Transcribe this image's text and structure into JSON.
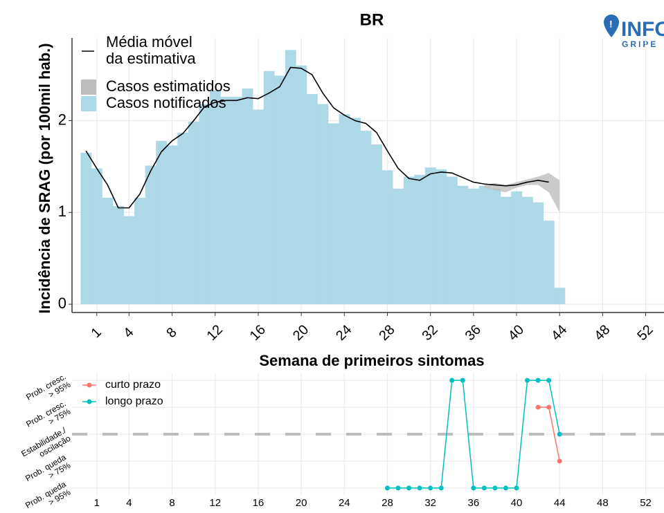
{
  "chart_data": [
    {
      "type": "bar",
      "title": "BR",
      "xlabel": "Semana de primeiros sintomas",
      "ylabel": "Incidência de SRAG (por 100mil hab.)",
      "xlim": [
        -1.3,
        53.7
      ],
      "ylim": [
        -0.09,
        2.9
      ],
      "xticks": [
        1,
        4,
        8,
        12,
        16,
        20,
        24,
        28,
        32,
        36,
        40,
        44,
        48,
        52
      ],
      "yticks": [
        0,
        1,
        2
      ],
      "grid": true,
      "series": [
        {
          "name": "Média móvel\nda estimativa",
          "type": "line",
          "color": "#000000",
          "x": [
            0,
            1,
            2,
            3,
            4,
            5,
            6,
            7,
            8,
            9,
            10,
            11,
            12,
            13,
            14,
            15,
            16,
            17,
            18,
            19,
            20,
            21,
            22,
            23,
            24,
            25,
            26,
            27,
            28,
            29,
            30,
            31,
            32,
            33,
            34,
            35,
            36,
            37,
            38,
            39,
            40,
            41,
            42,
            43
          ],
          "values": [
            1.67,
            1.48,
            1.3,
            1.05,
            1.05,
            1.2,
            1.45,
            1.66,
            1.78,
            1.86,
            2.0,
            2.15,
            2.2,
            2.22,
            2.22,
            2.25,
            2.24,
            2.3,
            2.37,
            2.58,
            2.57,
            2.5,
            2.3,
            2.14,
            2.06,
            2.0,
            1.97,
            1.87,
            1.67,
            1.48,
            1.37,
            1.35,
            1.42,
            1.44,
            1.43,
            1.38,
            1.33,
            1.31,
            1.3,
            1.29,
            1.3,
            1.33,
            1.35,
            1.33
          ]
        },
        {
          "name": "Casos estimatidos",
          "type": "band",
          "color": "#bebebe",
          "x": [
            37,
            38,
            39,
            40,
            41,
            42,
            43,
            44
          ],
          "low": [
            1.27,
            1.24,
            1.22,
            1.27,
            1.3,
            1.3,
            1.22,
            1.0
          ],
          "high": [
            1.3,
            1.32,
            1.3,
            1.33,
            1.36,
            1.39,
            1.43,
            1.35
          ]
        },
        {
          "name": "Casos notificados",
          "type": "bar",
          "color": "#add8e6",
          "x": [
            0,
            1,
            2,
            3,
            4,
            5,
            6,
            7,
            8,
            9,
            10,
            11,
            12,
            13,
            14,
            15,
            16,
            17,
            18,
            19,
            20,
            21,
            22,
            23,
            24,
            25,
            26,
            27,
            28,
            29,
            30,
            31,
            32,
            33,
            34,
            35,
            36,
            37,
            38,
            39,
            40,
            41,
            42,
            43,
            44
          ],
          "values": [
            1.65,
            1.48,
            1.16,
            1.07,
            0.96,
            1.16,
            1.51,
            1.78,
            1.73,
            1.87,
            1.99,
            2.18,
            2.33,
            2.26,
            2.26,
            2.35,
            2.12,
            2.54,
            2.49,
            2.77,
            2.6,
            2.29,
            2.18,
            1.97,
            2.07,
            2.03,
            1.89,
            1.74,
            1.46,
            1.26,
            1.39,
            1.41,
            1.49,
            1.47,
            1.39,
            1.29,
            1.26,
            1.29,
            1.26,
            1.17,
            1.23,
            1.17,
            1.11,
            0.91,
            0.18
          ]
        }
      ],
      "logo": {
        "text": "INFO",
        "subtext": "GRIPE"
      }
    },
    {
      "type": "line",
      "xlim": [
        -1.3,
        53.7
      ],
      "ylim": [
        -2.26,
        2.26
      ],
      "xticks": [
        1,
        4,
        8,
        12,
        16,
        20,
        24,
        28,
        32,
        36,
        40,
        44,
        48,
        52
      ],
      "yticks": [
        {
          "value": -2,
          "label": "Prob. queda\n> 95%"
        },
        {
          "value": -1,
          "label": "Prob. queda\n> 75%"
        },
        {
          "value": 0,
          "label": "Estabilidade./\noscilação"
        },
        {
          "value": 1,
          "label": "Prob. cresc.\n> 75%"
        },
        {
          "value": 2,
          "label": "Prob. cresc.\n> 95%"
        }
      ],
      "reference_line": 0,
      "grid": true,
      "series": [
        {
          "name": "curto prazo",
          "color": "#f8766d",
          "x": [
            42,
            43,
            44
          ],
          "values": [
            1,
            1,
            -1
          ]
        },
        {
          "name": "longo prazo",
          "color": "#00bfc4",
          "x": [
            28,
            29,
            30,
            31,
            32,
            33,
            34,
            35,
            36,
            37,
            38,
            39,
            40,
            41,
            42,
            43,
            44
          ],
          "values": [
            -2,
            -2,
            -2,
            -2,
            -2,
            -2,
            2,
            2,
            -2,
            -2,
            -2,
            -2,
            -2,
            2,
            2,
            2,
            0
          ]
        }
      ]
    }
  ]
}
